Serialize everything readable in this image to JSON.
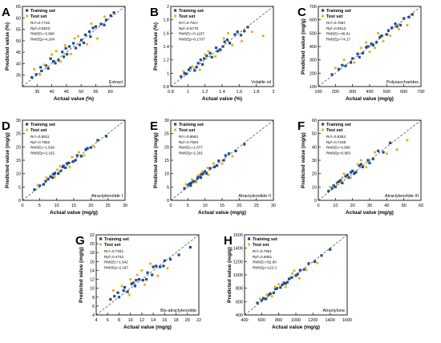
{
  "chart_data": [
    {
      "type": "scatter",
      "panel_letter": "A",
      "title": "Extract",
      "xlabel": "Actual value (%)",
      "ylabel": "Predicted value (%)",
      "xlim": [
        30,
        65
      ],
      "ylim": [
        30,
        65
      ],
      "xticks": [
        35,
        40,
        45,
        50,
        55,
        60
      ],
      "yticks": [
        35,
        40,
        45,
        50,
        55,
        60,
        65
      ],
      "legend": [
        "Training set",
        "Test set"
      ],
      "metrics": [
        "Rc²=0.7715",
        "Rp²=0.5923",
        "RMSEc=3.966",
        "RMSEp=4.204"
      ],
      "series": [
        {
          "name": "Training set",
          "x": [
            33.2,
            36.5,
            38.0,
            40.5,
            42.3,
            44.1,
            46.0,
            48.2,
            50.1,
            51.5,
            53.2,
            55.0,
            56.8,
            58.6,
            60.1,
            36.2,
            38.8,
            41.2,
            43.6,
            47.4,
            49.5,
            52.8,
            54.1,
            57.9,
            39.6,
            45.2,
            61.2,
            34.7,
            44.8,
            50.9
          ],
          "y": [
            34.0,
            36.8,
            39.2,
            41.0,
            41.5,
            43.0,
            47.5,
            46.8,
            50.3,
            52.6,
            51.8,
            56.2,
            57.3,
            59.1,
            61.0,
            38.4,
            37.9,
            40.2,
            45.1,
            48.9,
            48.2,
            54.0,
            55.6,
            56.9,
            42.2,
            44.1,
            62.3,
            35.3,
            46.7,
            49.1
          ]
        },
        {
          "name": "Test set",
          "x": [
            34.0,
            37.5,
            40.0,
            43.0,
            46.5,
            49.0,
            52.0,
            55.5,
            58.0,
            41.5,
            47.8,
            53.5,
            36.0,
            44.5
          ],
          "y": [
            37.5,
            39.5,
            44.0,
            41.0,
            44.2,
            52.0,
            48.5,
            51.0,
            60.5,
            45.5,
            51.0,
            57.5,
            35.2,
            48.0
          ]
        }
      ]
    },
    {
      "type": "scatter",
      "panel_letter": "B",
      "title": "Volatile oil",
      "xlabel": "Actual value (%)",
      "ylabel": "Predicted value (%)",
      "xlim": [
        0.8,
        2.0
      ],
      "ylim": [
        0.8,
        2.0
      ],
      "xticks": [
        0.8,
        1.0,
        1.2,
        1.4,
        1.6,
        1.8,
        2.0
      ],
      "yticks": [
        0.8,
        1.0,
        1.2,
        1.4,
        1.6,
        1.8,
        2.0
      ],
      "legend": [
        "Training set",
        "Test set"
      ],
      "metrics": [
        "Rc²=0.7917",
        "Rp²=0.5776",
        "RMSEc=0.1157",
        "RMSEp=0.1707"
      ],
      "series": [
        {
          "name": "Training set",
          "x": [
            0.92,
            0.98,
            1.03,
            1.08,
            1.12,
            1.17,
            1.22,
            1.28,
            1.33,
            1.38,
            1.43,
            1.49,
            1.55,
            1.62,
            1.7,
            1.01,
            1.1,
            1.19,
            1.26,
            1.35,
            1.46,
            1.58,
            1.66,
            0.96,
            1.15,
            1.41
          ],
          "y": [
            0.95,
            0.99,
            1.08,
            1.04,
            1.15,
            1.13,
            1.26,
            1.24,
            1.38,
            1.35,
            1.47,
            1.45,
            1.58,
            1.57,
            1.69,
            1.05,
            1.09,
            1.22,
            1.3,
            1.33,
            1.5,
            1.62,
            1.63,
            1.0,
            1.2,
            1.4
          ]
        },
        {
          "name": "Test set",
          "x": [
            0.95,
            1.05,
            1.14,
            1.24,
            1.32,
            1.42,
            1.52,
            1.63,
            1.75,
            1.88,
            1.2,
            1.47
          ],
          "y": [
            1.03,
            1.1,
            1.05,
            1.33,
            1.25,
            1.52,
            1.42,
            1.48,
            1.62,
            1.56,
            1.28,
            1.6
          ]
        }
      ]
    },
    {
      "type": "scatter",
      "panel_letter": "C",
      "title": "Polysaccharides",
      "xlabel": "Actual value (mg/g)",
      "ylabel": "Predicted value (mg/g)",
      "xlim": [
        100,
        700
      ],
      "ylim": [
        100,
        700
      ],
      "xticks": [
        100,
        200,
        300,
        400,
        500,
        600,
        700
      ],
      "yticks": [
        100,
        200,
        300,
        400,
        500,
        600,
        700
      ],
      "legend": [
        "Training set",
        "Test set"
      ],
      "metrics": [
        "Rc²=0.7657",
        "Rp²=0.5513",
        "RMSEc=49.91",
        "RMSEp=74.17"
      ],
      "series": [
        {
          "name": "Training set",
          "x": [
            180,
            220,
            260,
            300,
            330,
            360,
            390,
            410,
            440,
            470,
            500,
            530,
            560,
            600,
            630,
            340,
            380,
            420,
            460,
            510,
            550,
            240,
            290,
            580,
            650
          ],
          "y": [
            190,
            230,
            255,
            310,
            345,
            350,
            400,
            420,
            430,
            480,
            490,
            540,
            550,
            610,
            620,
            320,
            395,
            410,
            470,
            520,
            570,
            260,
            280,
            560,
            640
          ]
        },
        {
          "name": "Test set",
          "x": [
            200,
            250,
            310,
            350,
            400,
            450,
            480,
            520,
            570,
            620,
            380,
            430
          ],
          "y": [
            240,
            300,
            280,
            390,
            360,
            500,
            440,
            480,
            530,
            560,
            430,
            390
          ]
        }
      ]
    },
    {
      "type": "scatter",
      "panel_letter": "D",
      "title": "Atractylenolide I",
      "xlabel": "Actual value (mg/g)",
      "ylabel": "Predicted value (mg/g)",
      "xlim": [
        0,
        30
      ],
      "ylim": [
        0,
        30
      ],
      "xticks": [
        0,
        5,
        10,
        15,
        20,
        25,
        30
      ],
      "yticks": [
        0,
        5,
        10,
        15,
        20,
        25,
        30
      ],
      "legend": [
        "Training set",
        "Test set"
      ],
      "metrics": [
        "Rc²=0.8911",
        "Rp²=0.7852",
        "RMSEc=1.539",
        "RMSEp=2.162"
      ],
      "series": [
        {
          "name": "Training set",
          "x": [
            3.5,
            5.0,
            6.2,
            7.5,
            8.8,
            9.5,
            10.5,
            11.8,
            12.6,
            13.5,
            14.8,
            16.0,
            17.2,
            18.5,
            20.0,
            22.0,
            24.5,
            6.8,
            9.0,
            11.2,
            13.0,
            15.5,
            19.0,
            8.2,
            12.0
          ],
          "y": [
            4.0,
            5.5,
            6.0,
            8.0,
            8.5,
            10.2,
            10.0,
            12.5,
            12.2,
            14.0,
            14.5,
            16.8,
            16.5,
            19.0,
            19.8,
            22.5,
            24.0,
            7.2,
            9.8,
            11.0,
            13.8,
            15.0,
            19.5,
            8.9,
            12.9
          ]
        },
        {
          "name": "Test set",
          "x": [
            4.5,
            7.0,
            9.5,
            11.0,
            13.8,
            16.5,
            18.0,
            21.0,
            10.2,
            14.5
          ],
          "y": [
            5.8,
            8.5,
            8.7,
            12.8,
            12.5,
            18.0,
            16.8,
            20.0,
            11.5,
            16.2
          ]
        }
      ]
    },
    {
      "type": "scatter",
      "panel_letter": "E",
      "title": "Atractylenolide II",
      "xlabel": "Actual value (mg/g)",
      "ylabel": "Predicted value (mg/g)",
      "xlim": [
        0,
        30
      ],
      "ylim": [
        0,
        30
      ],
      "xticks": [
        0,
        5,
        10,
        15,
        20,
        25,
        30
      ],
      "yticks": [
        0,
        5,
        10,
        15,
        20,
        25,
        30
      ],
      "legend": [
        "Training set",
        "Test set"
      ],
      "metrics": [
        "Rc²=0.8663",
        "Rp²=0.7504",
        "RMSEc=1.577",
        "RMSEp=2.201"
      ],
      "series": [
        {
          "name": "Training set",
          "x": [
            4.0,
            5.0,
            5.8,
            6.5,
            7.2,
            8.0,
            8.8,
            9.5,
            10.5,
            11.5,
            12.8,
            14.0,
            15.5,
            17.0,
            19.0,
            21.5,
            6.0,
            7.8,
            9.0,
            10.0,
            13.5,
            16.0,
            5.5,
            8.5
          ],
          "y": [
            4.5,
            5.8,
            5.5,
            7.2,
            7.0,
            8.8,
            8.5,
            10.2,
            10.0,
            12.0,
            12.5,
            14.8,
            15.0,
            17.5,
            18.5,
            21.0,
            6.5,
            8.2,
            9.8,
            10.8,
            13.0,
            16.8,
            6.2,
            9.2
          ]
        },
        {
          "name": "Test set",
          "x": [
            4.5,
            6.2,
            7.5,
            9.2,
            11.0,
            12.5,
            15.0,
            18.0,
            8.2,
            10.8
          ],
          "y": [
            6.0,
            7.8,
            6.8,
            10.8,
            9.5,
            13.8,
            13.8,
            16.5,
            9.5,
            12.2
          ]
        }
      ]
    },
    {
      "type": "scatter",
      "panel_letter": "F",
      "title": "Atractylenolide III",
      "xlabel": "Actual value (mg/g)",
      "ylabel": "Predicted value (mg/g)",
      "xlim": [
        0,
        60
      ],
      "ylim": [
        0,
        60
      ],
      "xticks": [
        0,
        10,
        20,
        30,
        40,
        50,
        60
      ],
      "yticks": [
        0,
        10,
        20,
        30,
        40,
        50,
        60
      ],
      "legend": [
        "Training set",
        "Test set"
      ],
      "metrics": [
        "Rc²=0.8353",
        "Rp²=0.7169",
        "RMSEc=4.896",
        "RMSEp=6.983"
      ],
      "series": [
        {
          "name": "Training set",
          "x": [
            6,
            8,
            10,
            12,
            14,
            16,
            18,
            20,
            22,
            24,
            26,
            29,
            32,
            35,
            38,
            42,
            9,
            13,
            17,
            21,
            25,
            30,
            11,
            19
          ],
          "y": [
            7,
            9,
            10,
            14,
            13,
            18,
            17,
            22,
            21,
            26,
            25,
            30,
            31,
            37,
            36,
            43,
            11,
            15,
            19,
            20,
            27,
            28,
            13,
            21
          ]
        },
        {
          "name": "Test set",
          "x": [
            7,
            11,
            15,
            19,
            23,
            28,
            33,
            40,
            46,
            52,
            14,
            25
          ],
          "y": [
            10,
            12,
            20,
            17,
            27,
            25,
            36,
            35,
            38,
            45,
            17,
            30
          ]
        }
      ]
    },
    {
      "type": "scatter",
      "panel_letter": "G",
      "title": "Bis-atractylenolide",
      "xlabel": "Actual value (mg/g)",
      "ylabel": "Predicted value (mg/g)",
      "xlim": [
        4,
        22
      ],
      "ylim": [
        4,
        22
      ],
      "xticks": [
        4,
        6,
        8,
        10,
        12,
        14,
        16,
        18,
        20,
        22
      ],
      "yticks": [
        4,
        6,
        8,
        10,
        12,
        14,
        16,
        18,
        20,
        22
      ],
      "legend": [
        "Training set",
        "Test set"
      ],
      "metrics": [
        "Rc²=0.7201",
        "Rp²=0.4742",
        "RMSEc=1.542",
        "RMSEp=2.187"
      ],
      "series": [
        {
          "name": "Training set",
          "x": [
            6.5,
            7.2,
            8.0,
            8.8,
            9.5,
            10.2,
            10.8,
            11.5,
            12.2,
            13.0,
            13.8,
            14.5,
            15.2,
            16.0,
            17.0,
            18.5,
            20.5,
            9.0,
            11.0,
            12.8,
            14.0,
            15.8,
            7.8,
            10.5
          ],
          "y": [
            7.5,
            8.2,
            8.0,
            9.5,
            9.2,
            11.0,
            10.5,
            12.0,
            11.8,
            13.5,
            13.0,
            15.0,
            14.8,
            16.2,
            16.5,
            17.5,
            19.2,
            10.2,
            11.8,
            12.0,
            14.8,
            15.0,
            9.0,
            11.2
          ]
        },
        {
          "name": "Test set",
          "x": [
            7.0,
            8.5,
            9.8,
            11.2,
            12.5,
            13.5,
            14.8,
            16.5,
            10.0,
            12.0
          ],
          "y": [
            9.5,
            10.5,
            8.5,
            13.0,
            10.8,
            15.5,
            12.8,
            14.5,
            12.0,
            14.0
          ]
        }
      ]
    },
    {
      "type": "scatter",
      "panel_letter": "H",
      "title": "Atractylone",
      "xlabel": "Actual value (mg/g)",
      "ylabel": "Predicted value (mg/g)",
      "xlim": [
        400,
        1600
      ],
      "ylim": [
        400,
        1600
      ],
      "xticks": [
        400,
        600,
        800,
        1000,
        1200,
        1400,
        1600
      ],
      "yticks": [
        400,
        600,
        800,
        1000,
        1200,
        1400,
        1600
      ],
      "legend": [
        "Training set",
        "Test set"
      ],
      "metrics": [
        "Rc²=0.7951",
        "Rp²=0.6051",
        "RMSEc=82.80",
        "RMSEp=122.2"
      ],
      "series": [
        {
          "name": "Training set",
          "x": [
            550,
            600,
            650,
            700,
            740,
            780,
            820,
            860,
            900,
            950,
            1000,
            1050,
            1100,
            1150,
            1220,
            1300,
            1400,
            680,
            760,
            840,
            920,
            1020,
            620,
            880
          ],
          "y": [
            580,
            620,
            640,
            720,
            730,
            800,
            810,
            880,
            890,
            960,
            990,
            1070,
            1080,
            1170,
            1200,
            1290,
            1380,
            700,
            790,
            850,
            940,
            1010,
            650,
            870
          ]
        },
        {
          "name": "Test set",
          "x": [
            580,
            660,
            720,
            800,
            880,
            960,
            1040,
            1120,
            1250,
            760,
            980
          ],
          "y": [
            640,
            700,
            680,
            860,
            820,
            1020,
            950,
            1080,
            1180,
            820,
            1060
          ]
        }
      ]
    }
  ],
  "colors": {
    "training": "#1f4e8c",
    "test": "#f0ad1e",
    "diagonal": "#555555",
    "axis": "#222222"
  }
}
